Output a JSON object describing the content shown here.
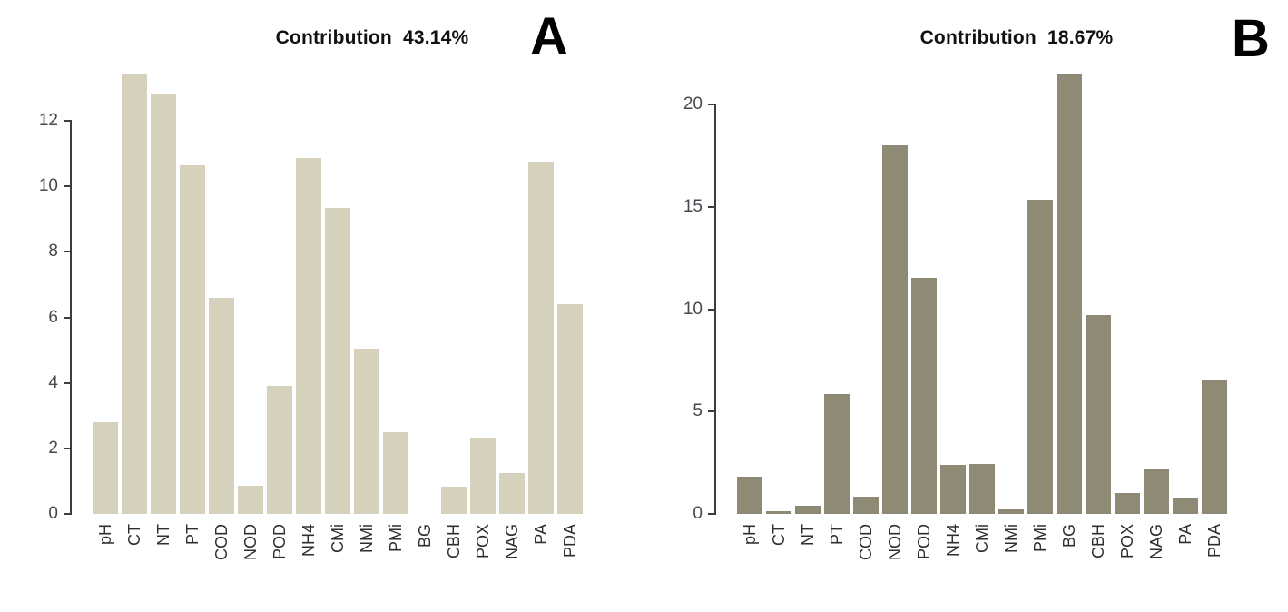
{
  "chart_data": [
    {
      "type": "bar",
      "panel_label": "A",
      "title": "Contribution  43.14%",
      "categories": [
        "pH",
        "CT",
        "NT",
        "PT",
        "COD",
        "NOD",
        "POD",
        "NH4",
        "CMi",
        "NMi",
        "PMi",
        "BG",
        "CBH",
        "POX",
        "NAG",
        "PA",
        "PDA"
      ],
      "values": [
        2.8,
        13.4,
        12.8,
        10.65,
        6.6,
        0.85,
        3.9,
        10.85,
        9.35,
        5.05,
        2.5,
        0,
        0.82,
        2.33,
        1.25,
        10.75,
        6.4
      ],
      "xlabel": "",
      "ylabel": "",
      "y_ticks": [
        0,
        2,
        4,
        6,
        8,
        10,
        12
      ],
      "ylim": [
        0,
        13.6
      ],
      "bar_color": "#d5d1bc",
      "axis_color": "#3c3c3c",
      "grid": false,
      "legend": "none"
    },
    {
      "type": "bar",
      "panel_label": "B",
      "title": "Contribution  18.67%",
      "categories": [
        "pH",
        "CT",
        "NT",
        "PT",
        "COD",
        "NOD",
        "POD",
        "NH4",
        "CMi",
        "NMi",
        "PMi",
        "BG",
        "CBH",
        "POX",
        "NAG",
        "PA",
        "PDA"
      ],
      "values": [
        1.8,
        0.12,
        0.42,
        5.85,
        0.85,
        18.0,
        11.55,
        2.4,
        2.45,
        0.2,
        15.35,
        21.5,
        9.7,
        1.0,
        2.2,
        0.8,
        6.55
      ],
      "xlabel": "",
      "ylabel": "",
      "y_ticks": [
        0,
        5,
        10,
        15,
        20
      ],
      "ylim": [
        0,
        21.9
      ],
      "bar_color": "#8e8a75",
      "axis_color": "#3c3c3c",
      "grid": false,
      "legend": "none"
    }
  ]
}
